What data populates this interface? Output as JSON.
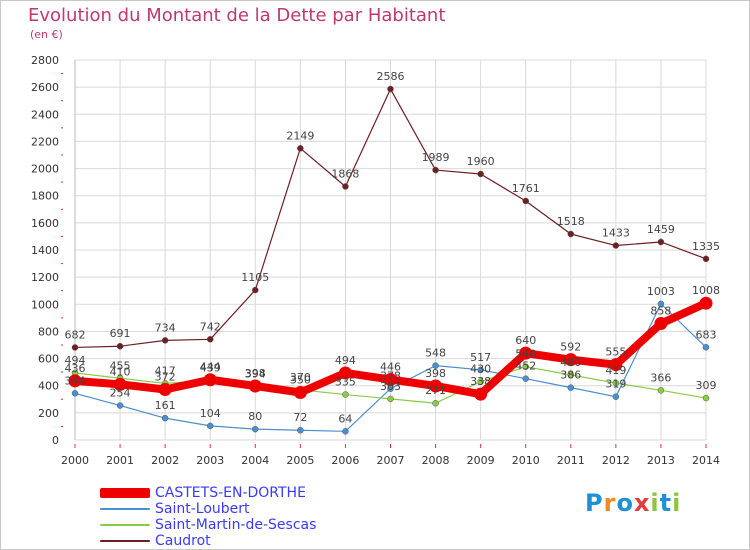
{
  "title": "Evolution du Montant de la Dette par Habitant",
  "subtitle": "(en €)",
  "logo": {
    "text": "Proxiti",
    "letter_colors": [
      "#1e90d6",
      "#f08a1c",
      "#1e90d6",
      "#e23c3c",
      "#8cc63f",
      "#1e90d6",
      "#8cc63f"
    ]
  },
  "colors": {
    "grid": "#d8d8d8",
    "axis_text": "#333333",
    "tick_red": "#e0303a",
    "legend_text": "#3a3aff"
  },
  "chart_data": {
    "type": "line",
    "title": "Evolution du Montant de la Dette par Habitant",
    "ylabel": "(en €)",
    "x": [
      "2000",
      "2001",
      "2002",
      "2003",
      "2004",
      "2005",
      "2006",
      "2007",
      "2008",
      "2009",
      "2010",
      "2011",
      "2012",
      "2013",
      "2014"
    ],
    "ylim": [
      0,
      2800
    ],
    "yticks": [
      0,
      200,
      400,
      600,
      800,
      1000,
      1200,
      1400,
      1600,
      1800,
      2000,
      2200,
      2400,
      2600,
      2800
    ],
    "grid": true,
    "legend_position": "bottom-left",
    "series": [
      {
        "name": "CASTETS-EN-DORTHE",
        "color": "#ee0000",
        "emphasis": true,
        "values": [
          436,
          410,
          372,
          444,
          398,
          350,
          494,
          446,
          398,
          338,
          640,
          592,
          555,
          858,
          1008
        ],
        "labels": [
          "436",
          "410",
          "372",
          "444",
          "398",
          "350",
          "494",
          "446",
          "398",
          "338",
          "640",
          "592",
          "555",
          "858",
          "1008"
        ]
      },
      {
        "name": "Saint-Loubert",
        "color": "#4a8fd0",
        "values": [
          344,
          254,
          161,
          104,
          80,
          72,
          64,
          378,
          548,
          517,
          452,
          386,
          319,
          1003,
          683
        ],
        "labels": [
          "344",
          "254",
          "161",
          "104",
          "80",
          "72",
          "64",
          "378",
          "548",
          "517",
          "452",
          "386",
          "319",
          "1003",
          "683"
        ]
      },
      {
        "name": "Saint-Martin-de-Sescas",
        "color": "#88cc44",
        "values": [
          494,
          455,
          417,
          439,
          394,
          370,
          335,
          303,
          271,
          430,
          540,
          480,
          419,
          366,
          309
        ],
        "labels": [
          "494",
          "455",
          "417",
          "439",
          "394",
          "370",
          "335",
          "303",
          "271",
          "430",
          "540",
          "480",
          "419",
          "366",
          "309"
        ]
      },
      {
        "name": "Caudrot",
        "color": "#6e1f22",
        "values": [
          682,
          691,
          734,
          742,
          1105,
          2149,
          1868,
          2586,
          1989,
          1960,
          1761,
          1518,
          1433,
          1459,
          1335
        ],
        "labels": [
          "682",
          "691",
          "734",
          "742",
          "1105",
          "2149",
          "1868",
          "2586",
          "1989",
          "1960",
          "1761",
          "1518",
          "1433",
          "1459",
          "1335"
        ]
      }
    ]
  }
}
